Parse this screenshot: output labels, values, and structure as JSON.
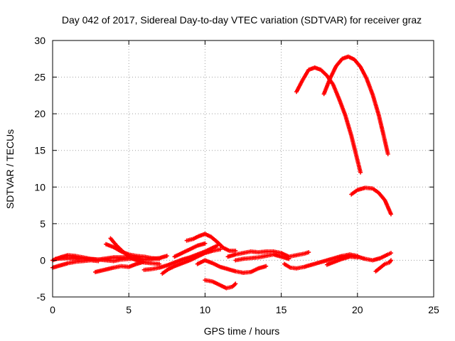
{
  "chart_data": {
    "type": "scatter",
    "title": "Day 042 of 2017, Sidereal Day-to-day VTEC variation (SDTVAR) for receiver graz",
    "xlabel": "GPS time / hours",
    "ylabel": "SDTVAR / TECUs",
    "xlim": [
      0,
      25
    ],
    "ylim": [
      -5,
      30
    ],
    "xticks": [
      0,
      5,
      10,
      15,
      20,
      25
    ],
    "yticks": [
      -5,
      0,
      5,
      10,
      15,
      20,
      25,
      30
    ],
    "grid": true,
    "legend": "none",
    "series_color": "#ff0000",
    "series": [
      {
        "points": [
          [
            16.0,
            23.0
          ],
          [
            16.4,
            24.6
          ],
          [
            16.8,
            26.0
          ],
          [
            17.2,
            26.3
          ],
          [
            17.6,
            26.0
          ],
          [
            18.0,
            25.2
          ],
          [
            18.4,
            24.0
          ],
          [
            18.8,
            22.0
          ],
          [
            19.2,
            19.8
          ],
          [
            19.6,
            17.0
          ],
          [
            19.9,
            14.5
          ],
          [
            20.2,
            12.0
          ]
        ]
      },
      {
        "points": [
          [
            17.8,
            22.7
          ],
          [
            18.2,
            24.8
          ],
          [
            18.6,
            26.5
          ],
          [
            19.0,
            27.5
          ],
          [
            19.4,
            27.8
          ],
          [
            19.8,
            27.4
          ],
          [
            20.2,
            26.4
          ],
          [
            20.6,
            24.8
          ],
          [
            21.0,
            22.6
          ],
          [
            21.4,
            19.8
          ],
          [
            21.7,
            17.2
          ],
          [
            22.0,
            14.5
          ]
        ]
      },
      {
        "points": [
          [
            19.6,
            9.0
          ],
          [
            20.0,
            9.6
          ],
          [
            20.5,
            9.9
          ],
          [
            21.0,
            9.8
          ],
          [
            21.4,
            9.2
          ],
          [
            21.8,
            8.2
          ],
          [
            22.2,
            6.3
          ]
        ]
      },
      {
        "points": [
          [
            0.0,
            0.0
          ],
          [
            0.5,
            0.4
          ],
          [
            1.0,
            0.7
          ],
          [
            1.5,
            0.6
          ],
          [
            2.0,
            0.4
          ],
          [
            2.5,
            0.2
          ],
          [
            3.0,
            0.1
          ],
          [
            3.5,
            0.0
          ],
          [
            4.0,
            -0.1
          ],
          [
            4.5,
            0.1
          ],
          [
            5.0,
            0.2
          ],
          [
            5.5,
            0.2
          ]
        ]
      },
      {
        "points": [
          [
            0.0,
            -1.0
          ],
          [
            0.5,
            -0.7
          ],
          [
            1.0,
            -0.4
          ],
          [
            1.5,
            -0.2
          ],
          [
            2.0,
            -0.1
          ],
          [
            2.5,
            0.0
          ],
          [
            3.0,
            -0.1
          ]
        ]
      },
      {
        "points": [
          [
            0.2,
            0.2
          ],
          [
            1.0,
            0.3
          ],
          [
            2.0,
            0.2
          ],
          [
            3.0,
            0.1
          ],
          [
            4.0,
            0.4
          ],
          [
            5.0,
            0.4
          ],
          [
            6.0,
            0.1
          ],
          [
            7.0,
            0.3
          ],
          [
            7.5,
            0.6
          ]
        ]
      },
      {
        "points": [
          [
            2.8,
            -1.6
          ],
          [
            3.4,
            -1.3
          ],
          [
            4.0,
            -1.0
          ],
          [
            4.5,
            -0.8
          ],
          [
            5.0,
            -0.9
          ],
          [
            5.5,
            -0.5
          ],
          [
            6.0,
            -0.2
          ]
        ]
      },
      {
        "points": [
          [
            3.5,
            2.2
          ],
          [
            4.0,
            1.8
          ],
          [
            4.5,
            1.2
          ],
          [
            5.0,
            0.8
          ],
          [
            5.5,
            0.6
          ],
          [
            6.0,
            0.5
          ],
          [
            6.5,
            0.3
          ],
          [
            7.0,
            0.2
          ]
        ]
      },
      {
        "points": [
          [
            3.8,
            3.0
          ],
          [
            4.2,
            2.0
          ],
          [
            4.6,
            1.2
          ],
          [
            5.0,
            0.5
          ],
          [
            5.5,
            0.0
          ],
          [
            6.0,
            -0.3
          ],
          [
            6.5,
            -0.4
          ],
          [
            7.0,
            -0.5
          ]
        ]
      },
      {
        "points": [
          [
            6.0,
            -1.3
          ],
          [
            6.5,
            -1.2
          ],
          [
            7.0,
            -1.0
          ],
          [
            7.5,
            -0.7
          ],
          [
            8.0,
            -0.3
          ],
          [
            8.5,
            0.1
          ],
          [
            9.0,
            0.4
          ],
          [
            9.5,
            0.8
          ],
          [
            10.0,
            1.2
          ],
          [
            10.4,
            1.6
          ],
          [
            10.8,
            2.0
          ]
        ]
      },
      {
        "points": [
          [
            7.2,
            -1.8
          ],
          [
            7.6,
            -1.2
          ],
          [
            8.0,
            -0.8
          ],
          [
            8.5,
            -0.4
          ],
          [
            9.0,
            0.0
          ],
          [
            9.5,
            0.5
          ],
          [
            10.0,
            1.0
          ],
          [
            10.5,
            1.3
          ],
          [
            11.0,
            1.5
          ]
        ]
      },
      {
        "points": [
          [
            8.0,
            0.5
          ],
          [
            8.5,
            1.0
          ],
          [
            9.0,
            1.5
          ],
          [
            9.5,
            2.0
          ],
          [
            10.0,
            2.3
          ]
        ]
      },
      {
        "points": [
          [
            8.8,
            2.7
          ],
          [
            9.2,
            2.9
          ],
          [
            9.6,
            3.3
          ],
          [
            10.0,
            3.6
          ],
          [
            10.4,
            3.2
          ],
          [
            10.8,
            2.5
          ],
          [
            11.2,
            1.7
          ],
          [
            11.6,
            1.3
          ],
          [
            12.0,
            1.3
          ]
        ]
      },
      {
        "points": [
          [
            9.5,
            -0.5
          ],
          [
            10.0,
            0.0
          ],
          [
            10.5,
            -0.4
          ],
          [
            11.0,
            -0.9
          ],
          [
            11.5,
            -1.2
          ],
          [
            12.0,
            -1.5
          ],
          [
            12.5,
            -1.7
          ],
          [
            13.0,
            -1.6
          ],
          [
            13.5,
            -1.1
          ],
          [
            14.0,
            -0.8
          ]
        ]
      },
      {
        "points": [
          [
            10.0,
            -2.7
          ],
          [
            10.5,
            -2.9
          ],
          [
            11.0,
            -3.4
          ],
          [
            11.4,
            -3.8
          ],
          [
            11.8,
            -3.6
          ],
          [
            12.0,
            -3.2
          ]
        ]
      },
      {
        "points": [
          [
            11.5,
            0.5
          ],
          [
            12.0,
            0.8
          ],
          [
            12.5,
            1.0
          ],
          [
            13.0,
            1.2
          ],
          [
            13.5,
            1.1
          ],
          [
            14.0,
            1.2
          ],
          [
            14.5,
            1.2
          ],
          [
            15.0,
            1.0
          ],
          [
            15.5,
            0.5
          ],
          [
            16.0,
            0.7
          ],
          [
            16.5,
            0.9
          ],
          [
            16.8,
            1.1
          ]
        ]
      },
      {
        "points": [
          [
            12.0,
            0.0
          ],
          [
            12.5,
            0.2
          ],
          [
            13.0,
            0.3
          ],
          [
            13.5,
            0.4
          ],
          [
            14.0,
            0.6
          ],
          [
            14.5,
            0.8
          ],
          [
            15.0,
            0.5
          ],
          [
            15.5,
            0.2
          ]
        ]
      },
      {
        "points": [
          [
            15.2,
            -0.5
          ],
          [
            15.6,
            -1.0
          ],
          [
            16.0,
            -1.1
          ],
          [
            16.5,
            -0.9
          ],
          [
            17.0,
            -0.6
          ],
          [
            17.5,
            -0.3
          ],
          [
            18.0,
            0.0
          ],
          [
            18.5,
            0.3
          ],
          [
            19.0,
            0.6
          ],
          [
            19.5,
            0.8
          ],
          [
            20.0,
            0.6
          ]
        ]
      },
      {
        "points": [
          [
            18.0,
            -0.6
          ],
          [
            18.5,
            -0.2
          ],
          [
            19.0,
            0.2
          ],
          [
            19.5,
            0.5
          ],
          [
            20.0,
            0.4
          ]
        ]
      },
      {
        "points": [
          [
            18.8,
            0.3
          ],
          [
            19.4,
            0.6
          ],
          [
            20.0,
            0.5
          ],
          [
            20.5,
            0.2
          ],
          [
            21.0,
            0.0
          ],
          [
            21.5,
            0.3
          ],
          [
            22.0,
            0.8
          ],
          [
            22.2,
            1.0
          ]
        ]
      },
      {
        "points": [
          [
            21.2,
            -1.5
          ],
          [
            21.5,
            -1.0
          ],
          [
            21.8,
            -0.5
          ],
          [
            22.1,
            -0.3
          ],
          [
            22.2,
            0.0
          ]
        ]
      }
    ]
  }
}
